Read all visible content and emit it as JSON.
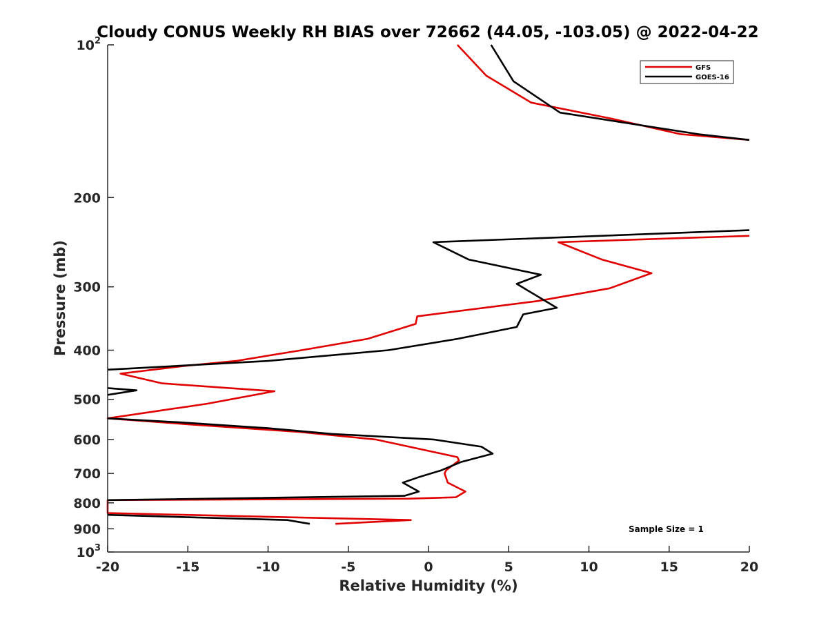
{
  "chart_data": {
    "type": "line",
    "title": "Cloudy CONUS Weekly RH BIAS over 72662 (44.05, -103.05) @ 2022-04-22",
    "xlabel": "Relative Humidity (%)",
    "ylabel": "Pressure (mb)",
    "xlim": [
      -20,
      20
    ],
    "ylim": [
      100,
      1000
    ],
    "y_scale": "log",
    "y_reversed": true,
    "x_ticks": [
      "-20",
      "-15",
      "-10",
      "-5",
      "0",
      "5",
      "10",
      "15",
      "20"
    ],
    "y_ticks": [
      {
        "value": 100,
        "base": "10",
        "exp": "2"
      },
      {
        "value": 200,
        "label": "200"
      },
      {
        "value": 300,
        "label": "300"
      },
      {
        "value": 400,
        "label": "400"
      },
      {
        "value": 500,
        "label": "500"
      },
      {
        "value": 600,
        "label": "600"
      },
      {
        "value": 700,
        "label": "700"
      },
      {
        "value": 800,
        "label": "800"
      },
      {
        "value": 900,
        "label": "900"
      },
      {
        "value": 1000,
        "base": "10",
        "exp": "3"
      }
    ],
    "grid": false,
    "legend_position": "top-right",
    "series": [
      {
        "name": "GFS",
        "color": "#e00000",
        "segments": [
          [
            [
              1.8,
              100
            ],
            [
              3.6,
              115
            ],
            [
              6.4,
              130
            ],
            [
              11.5,
              140
            ],
            [
              15.7,
              150
            ],
            [
              20,
              154
            ]
          ],
          [
            [
              20,
              238
            ],
            [
              8.1,
              245
            ],
            [
              10.8,
              265
            ],
            [
              13.9,
              282
            ],
            [
              11.3,
              302
            ],
            [
              6.8,
              320
            ],
            [
              -0.7,
              343
            ],
            [
              -0.8,
              355
            ],
            [
              -3.8,
              380
            ],
            [
              -7.9,
              400
            ],
            [
              -12,
              420
            ],
            [
              -15.3,
              430
            ],
            [
              -19.2,
              445
            ],
            [
              -16.6,
              465
            ],
            [
              -9.6,
              482
            ],
            [
              -13.8,
              510
            ],
            [
              -20,
              545
            ],
            [
              -20,
              545
            ],
            [
              -15,
              560
            ],
            [
              -8,
              580
            ],
            [
              -3.3,
              600
            ],
            [
              1.8,
              650
            ],
            [
              1.9,
              660
            ],
            [
              1.1,
              690
            ],
            [
              1.0,
              700
            ],
            [
              1.2,
              730
            ],
            [
              2.3,
              760
            ],
            [
              1.7,
              780
            ],
            [
              -1.2,
              785
            ],
            [
              -20,
              790
            ],
            [
              -20,
              790
            ],
            [
              -20,
              838
            ],
            [
              -1.1,
              865
            ],
            [
              -5.8,
              880
            ]
          ]
        ]
      },
      {
        "name": "GOES-16",
        "color": "#000000",
        "segments": [
          [
            [
              3.9,
              100
            ],
            [
              5.3,
              118
            ],
            [
              8.2,
              136
            ],
            [
              16.8,
              150
            ],
            [
              20,
              154
            ]
          ],
          [
            [
              20,
              232
            ],
            [
              0.3,
              245
            ],
            [
              2.5,
              265
            ],
            [
              7.0,
              284
            ],
            [
              5.5,
              296
            ],
            [
              8.0,
              330
            ],
            [
              5.9,
              340
            ],
            [
              5.5,
              360
            ],
            [
              1.8,
              380
            ],
            [
              -2.5,
              400
            ],
            [
              -10,
              420
            ],
            [
              -20,
              437
            ]
          ],
          [
            [
              -20,
              475
            ],
            [
              -18.2,
              480
            ],
            [
              -20,
              490
            ]
          ],
          [
            [
              -20,
              545
            ],
            [
              -15.5,
              555
            ],
            [
              -10,
              570
            ],
            [
              -6,
              585
            ],
            [
              0.3,
              600
            ],
            [
              3.3,
              620
            ],
            [
              4.0,
              640
            ],
            [
              2,
              665
            ],
            [
              0.8,
              690
            ],
            [
              -0.5,
              710
            ],
            [
              -1.6,
              730
            ],
            [
              -0.6,
              760
            ],
            [
              -1.5,
              775
            ],
            [
              -20,
              790
            ],
            [
              -20,
              790
            ]
          ],
          [
            [
              -20,
              845
            ],
            [
              -8.8,
              865
            ],
            [
              -7.4,
              880
            ]
          ]
        ]
      }
    ],
    "annotation": "Sample Size = 1"
  }
}
